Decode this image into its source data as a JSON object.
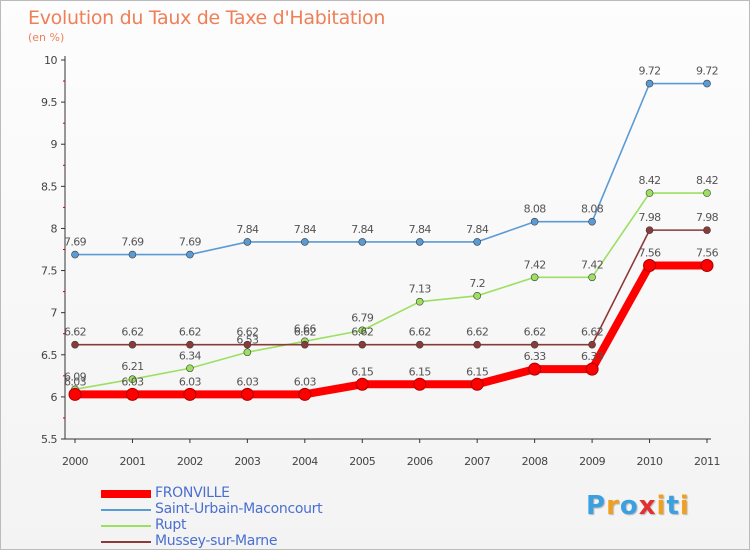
{
  "title": "Evolution du Taux de Taxe d'Habitation",
  "subtitle": "(en %)",
  "logo": {
    "letters": [
      "P",
      "r",
      "o",
      "x",
      "i",
      "t",
      "i"
    ],
    "colors": [
      "#3aa0e0",
      "#f0a020",
      "#3aa0e0",
      "#e03030",
      "#f0a020",
      "#3aa0e0",
      "#f0a020"
    ]
  },
  "chart_data": {
    "type": "line",
    "x": [
      "2000",
      "2001",
      "2002",
      "2003",
      "2004",
      "2005",
      "2006",
      "2007",
      "2008",
      "2009",
      "2010",
      "2011"
    ],
    "ylim": [
      5.5,
      10
    ],
    "yticks": [
      "5.5",
      "6",
      "6.5",
      "7",
      "7.5",
      "8",
      "8.5",
      "9",
      "9.5",
      "10"
    ],
    "grid": false,
    "legend_placement": "bottom-left",
    "series": [
      {
        "name": "Saint-Urbain-Maconcourt",
        "color": "#5b9bd5",
        "values": [
          7.69,
          7.69,
          7.69,
          7.84,
          7.84,
          7.84,
          7.84,
          7.84,
          8.08,
          8.08,
          9.72,
          9.72
        ],
        "labels": [
          "7.69",
          "7.69",
          "7.69",
          "7.84",
          "7.84",
          "7.84",
          "7.84",
          "7.84",
          "8.08",
          "8.08",
          "9.72",
          "9.72"
        ]
      },
      {
        "name": "Rupt",
        "color": "#9be060",
        "values": [
          6.09,
          6.21,
          6.34,
          6.53,
          6.66,
          6.79,
          7.13,
          7.2,
          7.42,
          7.42,
          8.42,
          8.42
        ],
        "labels": [
          "6.09",
          "6.21",
          "6.34",
          "6.53",
          "6.66",
          "6.79",
          "7.13",
          "7.2",
          "7.42",
          "7.42",
          "8.42",
          "8.42"
        ]
      },
      {
        "name": "Mussey-sur-Marne",
        "color": "#8b3a3a",
        "values": [
          6.62,
          6.62,
          6.62,
          6.62,
          6.62,
          6.62,
          6.62,
          6.62,
          6.62,
          6.62,
          7.98,
          7.98
        ],
        "labels": [
          "6.62",
          "6.62",
          "6.62",
          "6.62",
          "6.62",
          "6.62",
          "6.62",
          "6.62",
          "6.62",
          "6.62",
          "7.98",
          "7.98"
        ]
      },
      {
        "name": "FRONVILLE",
        "color": "#ff0000",
        "values": [
          6.03,
          6.03,
          6.03,
          6.03,
          6.03,
          6.15,
          6.15,
          6.15,
          6.33,
          6.33,
          7.56,
          7.56
        ],
        "labels": [
          "6.03",
          "6.03",
          "6.03",
          "6.03",
          "6.03",
          "6.15",
          "6.15",
          "6.15",
          "6.33",
          "6.33",
          "7.56",
          "7.56"
        ]
      }
    ],
    "legend_order": [
      "FRONVILLE",
      "Saint-Urbain-Maconcourt",
      "Rupt",
      "Mussey-sur-Marne"
    ]
  }
}
